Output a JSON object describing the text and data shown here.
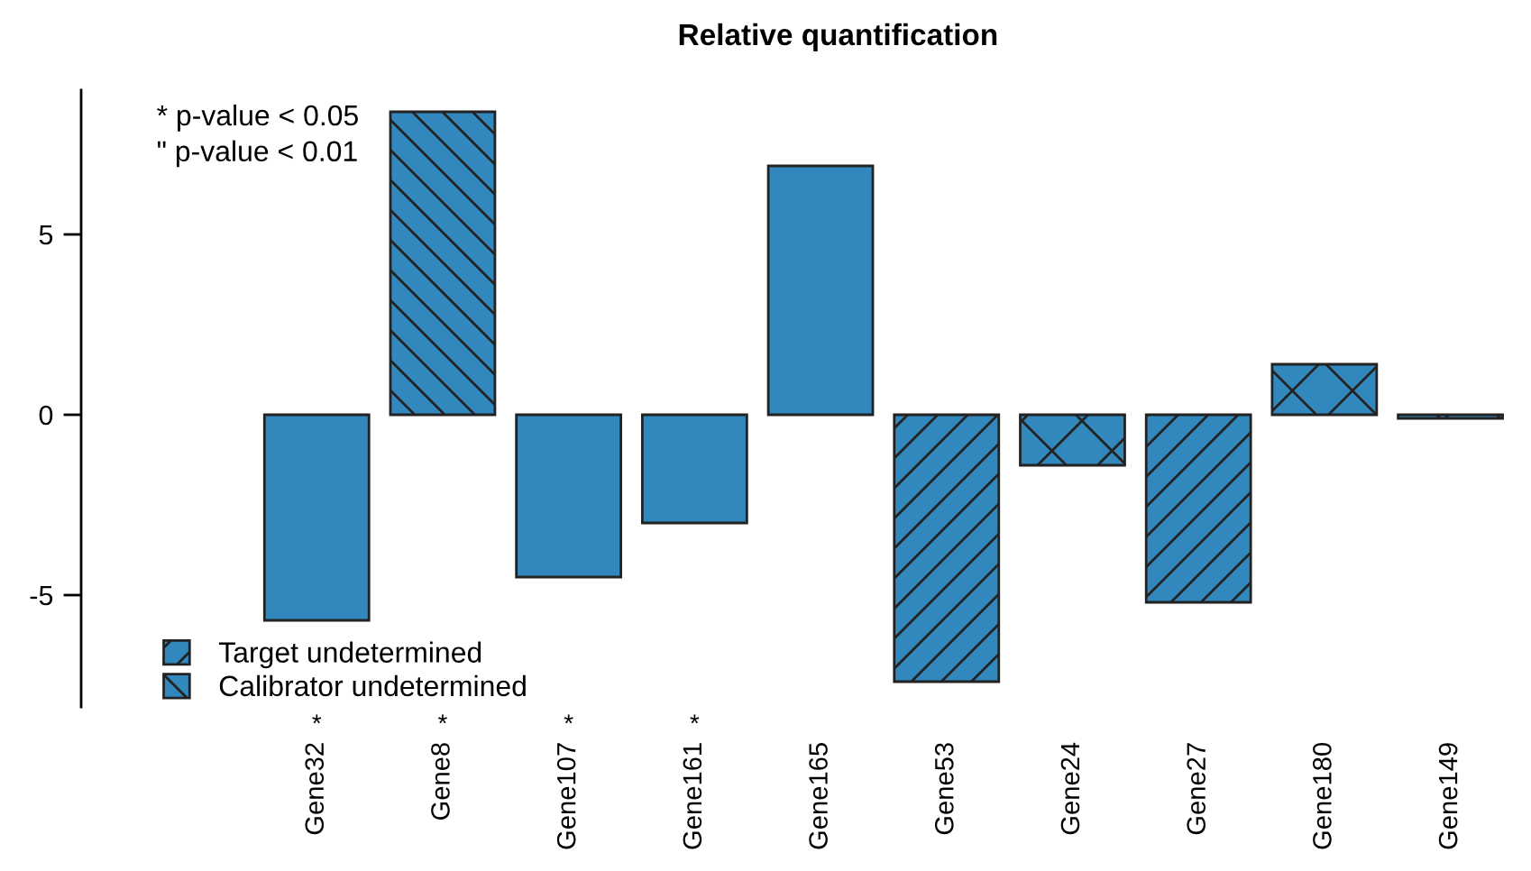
{
  "chart_data": {
    "type": "bar",
    "title": "Relative quantification",
    "categories": [
      "Gene32",
      "Gene8",
      "Gene107",
      "Gene161",
      "Gene165",
      "Gene53",
      "Gene24",
      "Gene27",
      "Gene180",
      "Gene149"
    ],
    "stacked": true,
    "series": [
      {
        "color": "#3288bd",
        "values": [
          -5.7,
          null,
          -4.5,
          -3.0,
          6.9,
          null,
          null,
          null,
          null,
          null
        ]
      },
      {
        "name": "Target undetermined",
        "color": "#3288bd",
        "values": [
          null,
          null,
          null,
          null,
          null,
          -7.4,
          null,
          -5.2,
          null,
          null
        ]
      },
      {
        "name": "Calibrator undetermined",
        "color": "#3288bd",
        "values": [
          null,
          8.4,
          null,
          null,
          null,
          null,
          null,
          null,
          null,
          null
        ]
      },
      {
        "color": "#3288bd",
        "values": [
          null,
          null,
          null,
          null,
          null,
          null,
          -1.4,
          null,
          1.4,
          -0.1
        ]
      }
    ],
    "ylim": [
      -8.1,
      9.0
    ],
    "yticks": [
      -5,
      0,
      5
    ],
    "legend": "bottom left",
    "annotations": [
      "* p-value < 0.05",
      "\" p-value < 0.01",
      "*",
      "*",
      "*",
      "*"
    ]
  }
}
